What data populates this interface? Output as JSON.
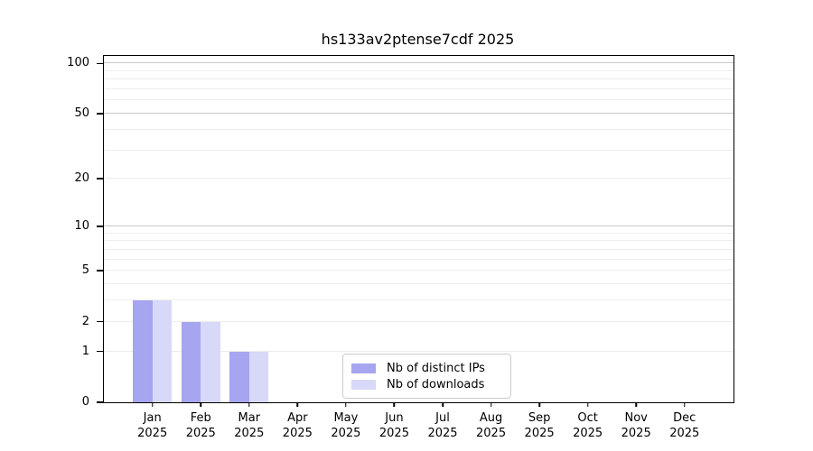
{
  "chart_data": {
    "type": "bar",
    "title": "hs133av2ptense7cdf 2025",
    "categories": [
      "Jan",
      "Feb",
      "Mar",
      "Apr",
      "May",
      "Jun",
      "Jul",
      "Aug",
      "Sep",
      "Oct",
      "Nov",
      "Dec"
    ],
    "category_sublabel": "2025",
    "series": [
      {
        "name": "Nb of distinct IPs",
        "color": "#a5a5f0",
        "values": [
          3,
          2,
          1,
          0,
          0,
          0,
          0,
          0,
          0,
          0,
          0,
          0
        ]
      },
      {
        "name": "Nb of downloads",
        "color": "#d8d8f8",
        "values": [
          3,
          2,
          1,
          0,
          0,
          0,
          0,
          0,
          0,
          0,
          0,
          0
        ]
      }
    ],
    "yaxis": {
      "scale": "log10(1+y)",
      "ticks": [
        0,
        1,
        2,
        5,
        10,
        20,
        50,
        100
      ],
      "ylim": [
        0,
        111
      ],
      "grid_minor": [
        1,
        2,
        3,
        4,
        5,
        6,
        7,
        8,
        9,
        20,
        30,
        40,
        60,
        70,
        80,
        90
      ],
      "grid_major": [
        10,
        50,
        100
      ]
    },
    "legend": {
      "entries": [
        "Nb of distinct IPs",
        "Nb of downloads"
      ],
      "position": "lower center"
    },
    "colors": {
      "grid_minor": "#ededed",
      "grid_major": "#c9c9c9",
      "spine": "#000000",
      "legend_border": "#cccccc",
      "text": "#000000",
      "background": "#ffffff"
    }
  }
}
